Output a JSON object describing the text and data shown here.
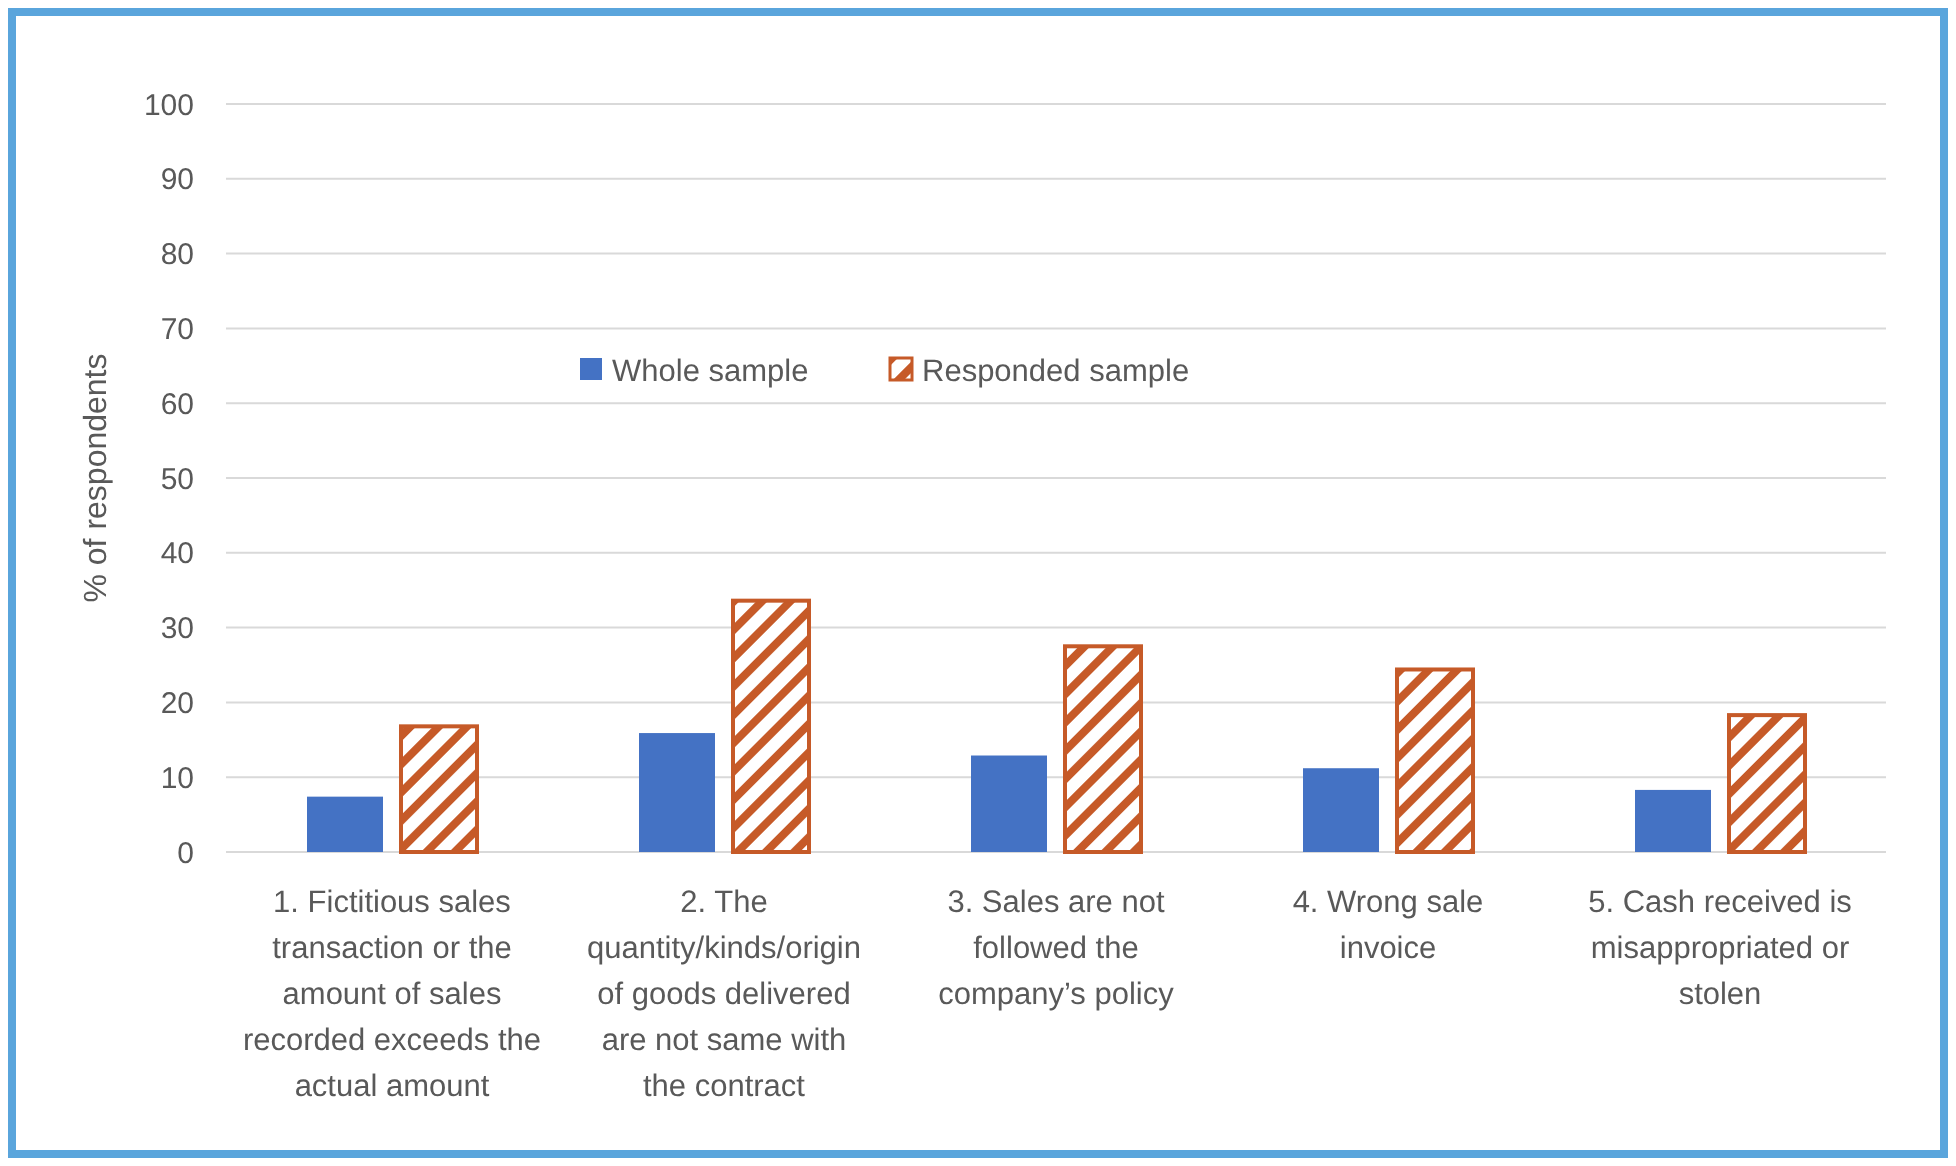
{
  "chart_data": {
    "type": "bar",
    "ylabel": "% of respondents",
    "categories": [
      "1.     Fictitious sales transaction or the amount of sales recorded exceeds the actual amount",
      "2.     The quantity/kinds/origin of goods delivered are not same with the contract",
      "3.     Sales are not followed the company’s policy",
      "4.     Wrong sale invoice",
      "5.     Cash received is misappropriated or stolen"
    ],
    "series": [
      {
        "name": "Whole sample",
        "color": "#4472c4",
        "values": [
          7.4,
          15.9,
          12.9,
          11.2,
          8.3
        ]
      },
      {
        "name": "Responded sample",
        "color": "#c65a28",
        "values": [
          16.8,
          33.6,
          27.5,
          24.4,
          18.3
        ]
      }
    ],
    "ylim": [
      0,
      100
    ],
    "yticks": [
      0,
      10,
      20,
      30,
      40,
      50,
      60,
      70,
      80,
      90,
      100
    ],
    "grid": "y",
    "legend": "top"
  }
}
